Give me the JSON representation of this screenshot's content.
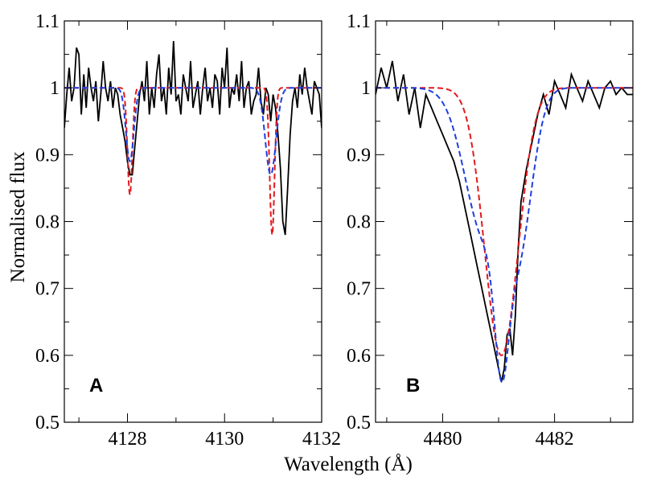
{
  "chart_data": [
    {
      "type": "line",
      "panel": "A",
      "xlim": [
        4126.7,
        4132
      ],
      "ylim": [
        0.5,
        1.1
      ],
      "xticks": [
        4128,
        4130,
        4132
      ],
      "xtick_labels": [
        "4128",
        "4130",
        "4132"
      ],
      "yticks": [
        0.5,
        0.6,
        0.7,
        0.8,
        0.9,
        1.0,
        1.1
      ],
      "ytick_labels": [
        "0.5",
        "0.6",
        "0.7",
        "0.8",
        "0.9",
        "1",
        "1.1"
      ],
      "ylabel": "Normalised flux",
      "grid": false,
      "series": [
        {
          "name": "observed",
          "color": "#000000",
          "style": "solid",
          "x": [
            4126.7,
            4126.75,
            4126.8,
            4126.85,
            4126.9,
            4126.95,
            4127.0,
            4127.05,
            4127.1,
            4127.15,
            4127.2,
            4127.25,
            4127.3,
            4127.35,
            4127.4,
            4127.45,
            4127.5,
            4127.55,
            4127.6,
            4127.65,
            4127.7,
            4127.75,
            4127.8,
            4127.85,
            4127.9,
            4127.95,
            4128.0,
            4128.05,
            4128.1,
            4128.15,
            4128.2,
            4128.25,
            4128.3,
            4128.35,
            4128.4,
            4128.45,
            4128.5,
            4128.55,
            4128.6,
            4128.65,
            4128.7,
            4128.75,
            4128.8,
            4128.85,
            4128.9,
            4128.95,
            4129.0,
            4129.05,
            4129.1,
            4129.15,
            4129.2,
            4129.25,
            4129.3,
            4129.35,
            4129.4,
            4129.45,
            4129.5,
            4129.55,
            4129.6,
            4129.65,
            4129.7,
            4129.75,
            4129.8,
            4129.85,
            4129.9,
            4129.95,
            4130.0,
            4130.05,
            4130.1,
            4130.15,
            4130.2,
            4130.25,
            4130.3,
            4130.35,
            4130.4,
            4130.45,
            4130.5,
            4130.55,
            4130.6,
            4130.65,
            4130.7,
            4130.75,
            4130.8,
            4130.85,
            4130.9,
            4130.95,
            4131.0,
            4131.05,
            4131.1,
            4131.15,
            4131.2,
            4131.25,
            4131.3,
            4131.35,
            4131.4,
            4131.45,
            4131.5,
            4131.55,
            4131.6,
            4131.65,
            4131.7,
            4131.75,
            4131.8,
            4131.85,
            4131.9,
            4131.95,
            4132.0
          ],
          "y": [
            0.94,
            0.99,
            1.03,
            0.98,
            1.0,
            1.06,
            1.05,
            0.96,
            1.02,
            0.97,
            1.03,
            1.0,
            0.98,
            1.01,
            0.95,
            0.99,
            1.04,
            1.0,
            0.98,
            1.01,
            0.97,
            1.0,
            0.99,
            0.96,
            0.94,
            0.92,
            0.89,
            0.87,
            0.87,
            0.91,
            0.95,
            0.99,
            1.01,
            0.98,
            1.04,
            0.96,
            1.0,
            0.97,
            1.02,
            1.05,
            0.98,
            1.0,
            0.96,
            1.03,
            0.99,
            1.07,
            0.98,
            0.99,
            0.96,
            1.02,
            1.0,
            0.98,
            1.04,
            0.97,
            0.99,
            1.01,
            0.96,
            1.0,
            1.03,
            0.98,
            1.0,
            0.97,
            1.02,
            1.01,
            0.96,
            1.03,
            1.0,
            1.06,
            0.97,
            1.0,
            0.99,
            1.02,
            0.98,
            1.04,
            0.97,
            1.0,
            1.01,
            0.96,
            0.98,
            0.99,
            1.03,
            0.98,
            0.96,
            1.0,
            0.99,
            0.95,
            0.99,
            0.97,
            0.93,
            0.88,
            0.8,
            0.78,
            0.85,
            0.93,
            0.98,
            1.0,
            0.97,
            1.02,
            0.99,
            1.03,
            1.0,
            0.98,
            0.96,
            1.01,
            1.0,
            0.99,
            0.94
          ]
        },
        {
          "name": "model-red",
          "color": "#e31a1c",
          "style": "dashed",
          "lines": [
            {
              "center": 4128.05,
              "depth": 0.16,
              "width": 0.05
            },
            {
              "center": 4130.98,
              "depth": 0.22,
              "width": 0.05
            }
          ]
        },
        {
          "name": "model-blue",
          "color": "#1f3fe0",
          "style": "dashed",
          "lines": [
            {
              "center": 4128.05,
              "depth": 0.11,
              "width": 0.08
            },
            {
              "center": 4130.95,
              "depth": 0.13,
              "width": 0.11
            }
          ]
        }
      ],
      "annotation": "A"
    },
    {
      "type": "line",
      "panel": "B",
      "xlim": [
        4478.8,
        4483.4
      ],
      "ylim": [
        0.5,
        1.1
      ],
      "xticks": [
        4480,
        4482
      ],
      "xtick_labels": [
        "4480",
        "4482"
      ],
      "yticks": [
        0.5,
        0.6,
        0.7,
        0.8,
        0.9,
        1.0,
        1.1
      ],
      "ytick_labels": [
        "0.5",
        "0.6",
        "0.7",
        "0.8",
        "0.9",
        "1",
        "1.1"
      ],
      "xlabel": "Wavelength  (Å)",
      "grid": false,
      "series": [
        {
          "name": "observed",
          "color": "#000000",
          "style": "solid",
          "x": [
            4478.8,
            4478.9,
            4479.0,
            4479.1,
            4479.2,
            4479.3,
            4479.4,
            4479.5,
            4479.6,
            4479.7,
            4479.8,
            4479.9,
            4480.0,
            4480.1,
            4480.2,
            4480.3,
            4480.4,
            4480.5,
            4480.6,
            4480.7,
            4480.8,
            4480.9,
            4481.0,
            4481.05,
            4481.1,
            4481.15,
            4481.2,
            4481.25,
            4481.3,
            4481.35,
            4481.4,
            4481.5,
            4481.6,
            4481.7,
            4481.8,
            4481.9,
            4482.0,
            4482.1,
            4482.2,
            4482.3,
            4482.4,
            4482.5,
            4482.6,
            4482.7,
            4482.8,
            4482.9,
            4483.0,
            4483.1,
            4483.2,
            4483.3,
            4483.4
          ],
          "y": [
            0.99,
            1.03,
            1.0,
            1.04,
            0.98,
            1.02,
            0.96,
            1.0,
            0.94,
            0.99,
            0.97,
            0.95,
            0.93,
            0.91,
            0.89,
            0.86,
            0.82,
            0.78,
            0.74,
            0.7,
            0.66,
            0.62,
            0.58,
            0.56,
            0.58,
            0.63,
            0.64,
            0.6,
            0.66,
            0.76,
            0.83,
            0.88,
            0.92,
            0.96,
            0.99,
            0.96,
            1.01,
            0.99,
            0.97,
            1.02,
            1.0,
            0.98,
            1.01,
            0.99,
            0.97,
            1.0,
            1.01,
            0.99,
            1.0,
            0.99,
            0.99
          ]
        },
        {
          "name": "model-red",
          "color": "#e31a1c",
          "style": "dashed",
          "lines": [
            {
              "center": 4481.05,
              "depth": 0.4,
              "width": 0.3
            }
          ]
        },
        {
          "name": "model-blue",
          "color": "#1f3fe0",
          "style": "dashed",
          "lines": [
            {
              "center": 4480.75,
              "depth": 0.22,
              "width": 0.35
            },
            {
              "center": 4481.05,
              "depth": 0.18,
              "width": 0.12
            },
            {
              "center": 4481.35,
              "depth": 0.22,
              "width": 0.25
            }
          ]
        }
      ],
      "annotation": "B"
    }
  ]
}
